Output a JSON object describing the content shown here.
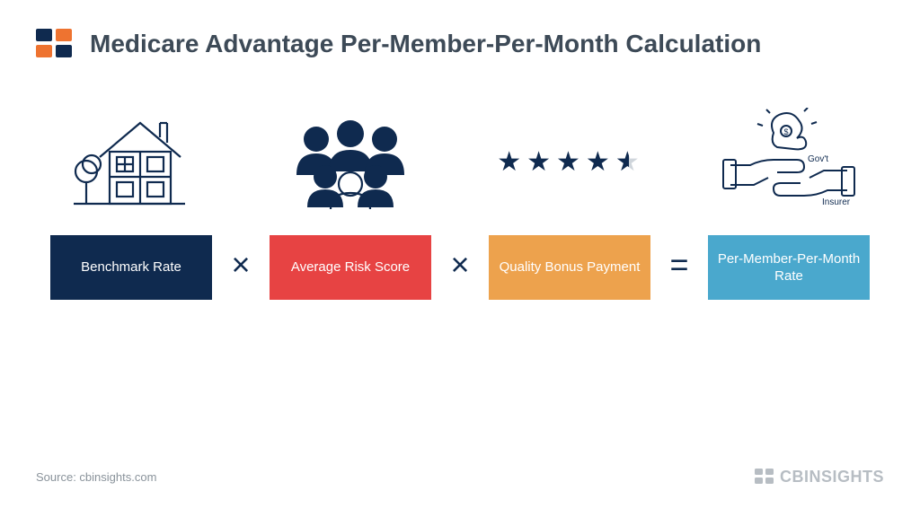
{
  "header": {
    "title": "Medicare Advantage Per-Member-Per-Month Calculation"
  },
  "logo": {
    "blue": "#0f2a4f",
    "orange": "#ee7330"
  },
  "terms": [
    {
      "label": "Benchmark Rate",
      "bg": "#0f2a4f",
      "icon": "house"
    },
    {
      "label": "Average Risk Score",
      "bg": "#e74343",
      "icon": "people"
    },
    {
      "label": "Quality Bonus Payment",
      "bg": "#eda24d",
      "icon": "stars"
    },
    {
      "label": "Per-Member-Per-Month Rate",
      "bg": "#4aa8cd",
      "icon": "hands"
    }
  ],
  "operators": [
    "×",
    "×",
    "="
  ],
  "stars": {
    "full": 4,
    "half": true,
    "color": "#0f2a4f"
  },
  "hands": {
    "label_top": "Gov't",
    "label_bottom": "Insurer",
    "stroke": "#0f2a4f"
  },
  "footer": {
    "source": "Source: cbinsights.com",
    "brand": "CBINSIGHTS",
    "brand_color": "#b7bdc3"
  },
  "icon_stroke": "#0f2a4f"
}
